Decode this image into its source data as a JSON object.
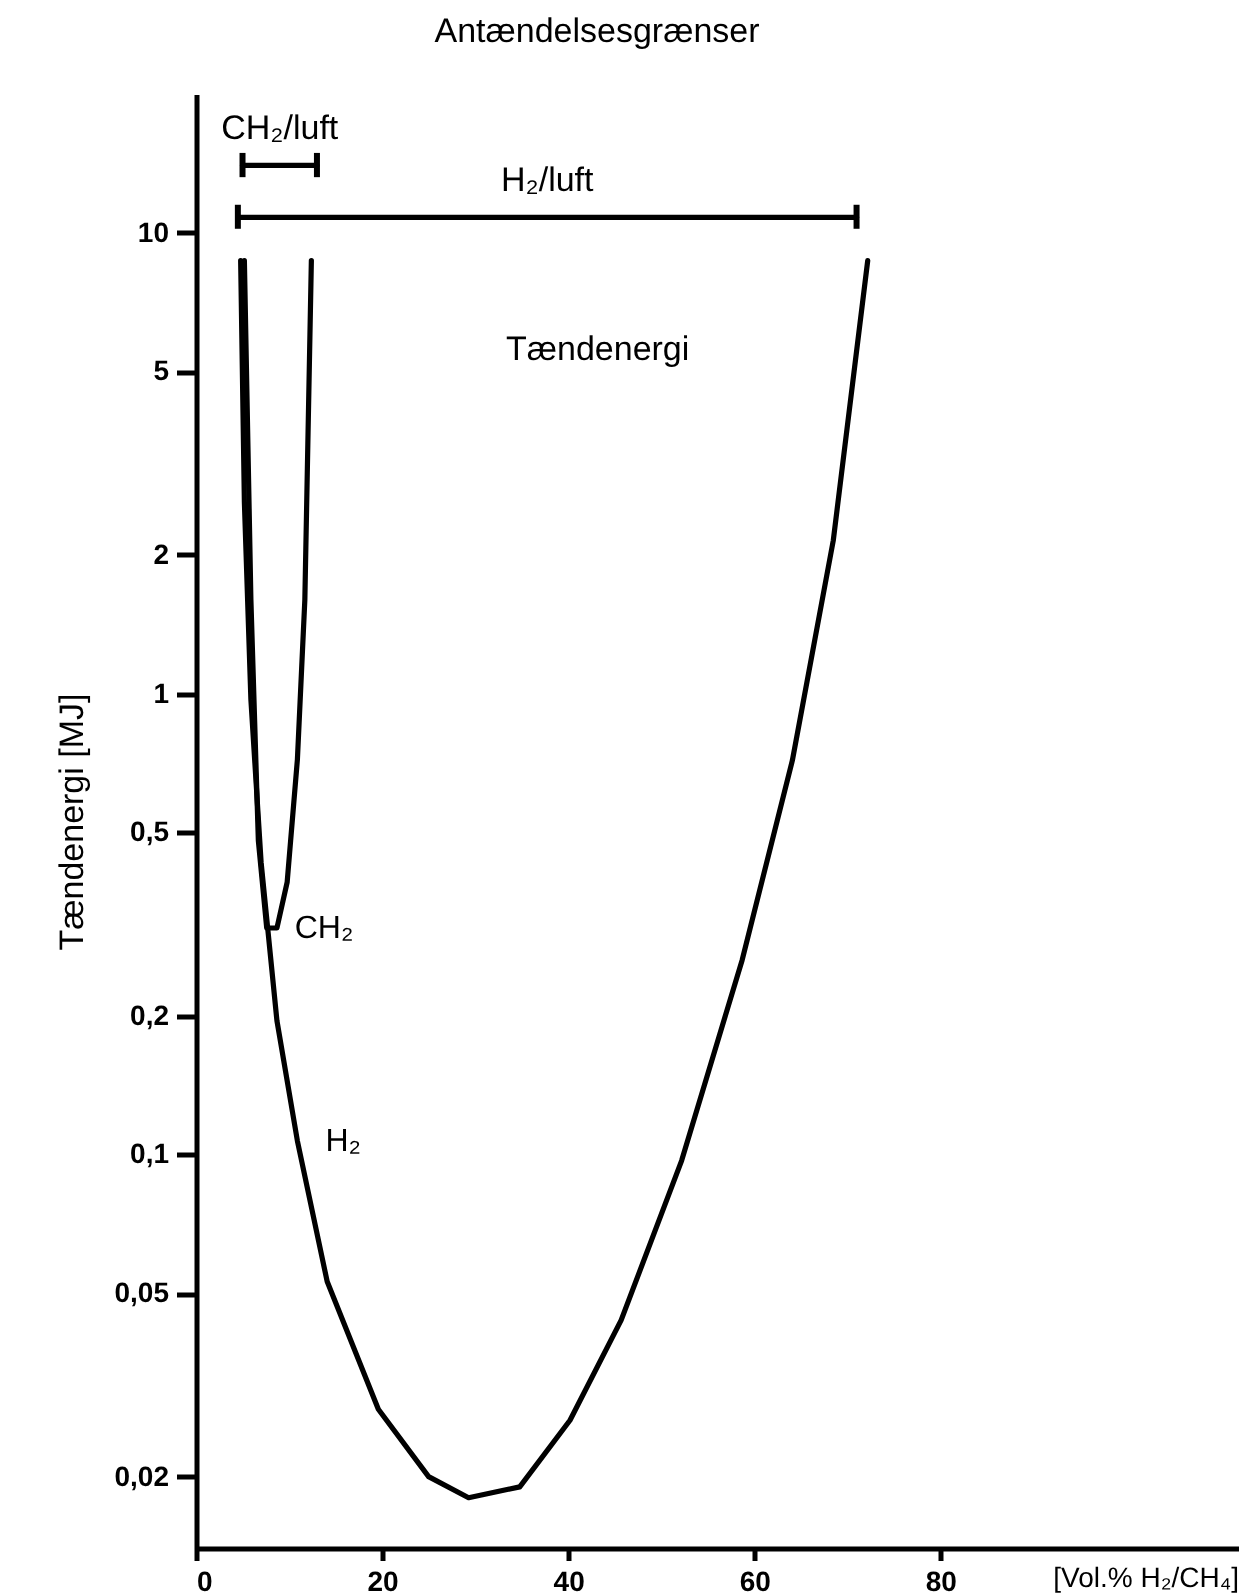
{
  "chart_data": {
    "type": "line",
    "title": "Antændelsesgrænser",
    "xlabel": "[Vol.% H₂/CH₄]",
    "ylabel": "Tændenergi [MJ]",
    "log": "y",
    "xlim": [
      0,
      112
    ],
    "xticks": [
      0,
      20,
      40,
      60,
      80
    ],
    "ylim": [
      0.014,
      20
    ],
    "yticks": [
      10,
      5,
      2,
      1,
      {
        "value": 0.5,
        "label": "0,5"
      },
      {
        "value": 0.2,
        "label": "0,2"
      },
      {
        "value": 0.1,
        "label": "0,1"
      },
      {
        "value": 0.05,
        "label": "0,05"
      },
      {
        "value": 0.02,
        "label": "0,02"
      }
    ],
    "series": [
      {
        "name": "CH₂",
        "color": "#000000",
        "x": [
          5.2,
          5.9,
          6.7,
          7.6,
          8.7,
          9.8,
          10.9,
          11.7,
          12.4
        ],
        "values": [
          8.7,
          1.6,
          0.48,
          0.31,
          0.31,
          0.39,
          0.72,
          1.6,
          8.7
        ]
      },
      {
        "name": "H₂",
        "color": "#000000",
        "x": [
          4.8,
          5.2,
          5.9,
          7.0,
          8.7,
          10.9,
          14.1,
          19.6,
          25,
          29.3,
          34.8,
          40.2,
          45.7,
          52.2,
          58.7,
          64.1,
          68.5,
          72.2
        ],
        "values": [
          8.7,
          2.6,
          0.97,
          0.43,
          0.195,
          0.107,
          0.053,
          0.028,
          0.02,
          0.018,
          0.019,
          0.0265,
          0.0437,
          0.097,
          0.264,
          0.716,
          2.15,
          8.7
        ]
      },
      {
        "name": "CH₂/luft",
        "color": "#000000",
        "x": [
          5,
          13
        ],
        "values": [
          14,
          14
        ],
        "errors": [
          [
            13.2,
            14.9
          ],
          [
            13.2,
            14.9
          ]
        ]
      },
      {
        "name": "H₂/luft",
        "color": "#000000",
        "x": [
          4.5,
          71
        ],
        "values": [
          10.8,
          10.8
        ],
        "errors": [
          [
            10.2,
            11.5
          ],
          [
            10.2,
            11.5
          ]
        ]
      }
    ],
    "annotations": [
      "Tændenergi"
    ]
  }
}
